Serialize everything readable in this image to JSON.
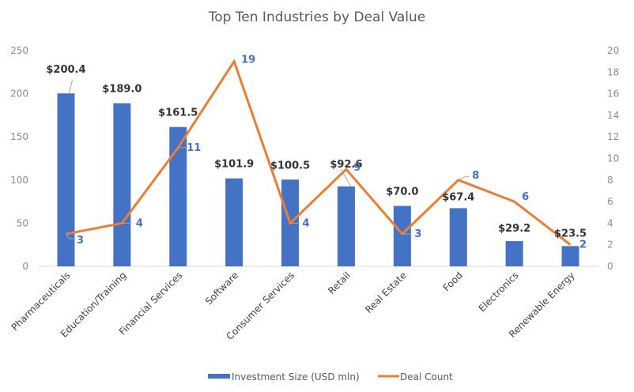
{
  "chart_data": {
    "type": "bar",
    "title": "Top Ten Industries by Deal Value",
    "categories": [
      "Pharmaceuticals",
      "Education/Training",
      "Financial Services",
      "Software",
      "Consumer Services",
      "Retail",
      "Real Estate",
      "Food",
      "Electronics",
      "Renewable Energy"
    ],
    "series": [
      {
        "name": "Investment Size (USD mln)",
        "type": "bar",
        "axis": "left",
        "color": "#4472c4",
        "values": [
          200.4,
          189.0,
          161.5,
          101.9,
          100.5,
          92.6,
          70.0,
          67.4,
          29.2,
          23.5
        ],
        "labels": [
          "$200.4",
          "$189.0",
          "$161.5",
          "$101.9",
          "$100.5",
          "$92.6",
          "$70.0",
          "$67.4",
          "$29.2",
          "$23.5"
        ]
      },
      {
        "name": "Deal Count",
        "type": "line",
        "axis": "right",
        "color": "#ed7d31",
        "values": [
          3,
          4,
          11,
          19,
          4,
          9,
          3,
          8,
          6,
          2
        ],
        "labels": [
          "3",
          "4",
          "11",
          "19",
          "4",
          "9",
          "3",
          "8",
          "6",
          "2"
        ]
      }
    ],
    "left_axis": {
      "ylim": [
        0,
        250
      ],
      "ticks": [
        "0",
        "50",
        "100",
        "150",
        "200",
        "250"
      ],
      "tick_values": [
        0,
        50,
        100,
        150,
        200,
        250
      ]
    },
    "right_axis": {
      "ylim": [
        0,
        20
      ],
      "ticks": [
        "0",
        "2",
        "4",
        "6",
        "8",
        "10",
        "12",
        "14",
        "16",
        "18",
        "20"
      ],
      "tick_values": [
        0,
        2,
        4,
        6,
        8,
        10,
        12,
        14,
        16,
        18,
        20
      ]
    },
    "xlabel": "",
    "ylabel": "",
    "grid": false,
    "legend": {
      "position": "bottom",
      "entries": [
        "Investment Size (USD mln)",
        "Deal Count"
      ]
    }
  }
}
